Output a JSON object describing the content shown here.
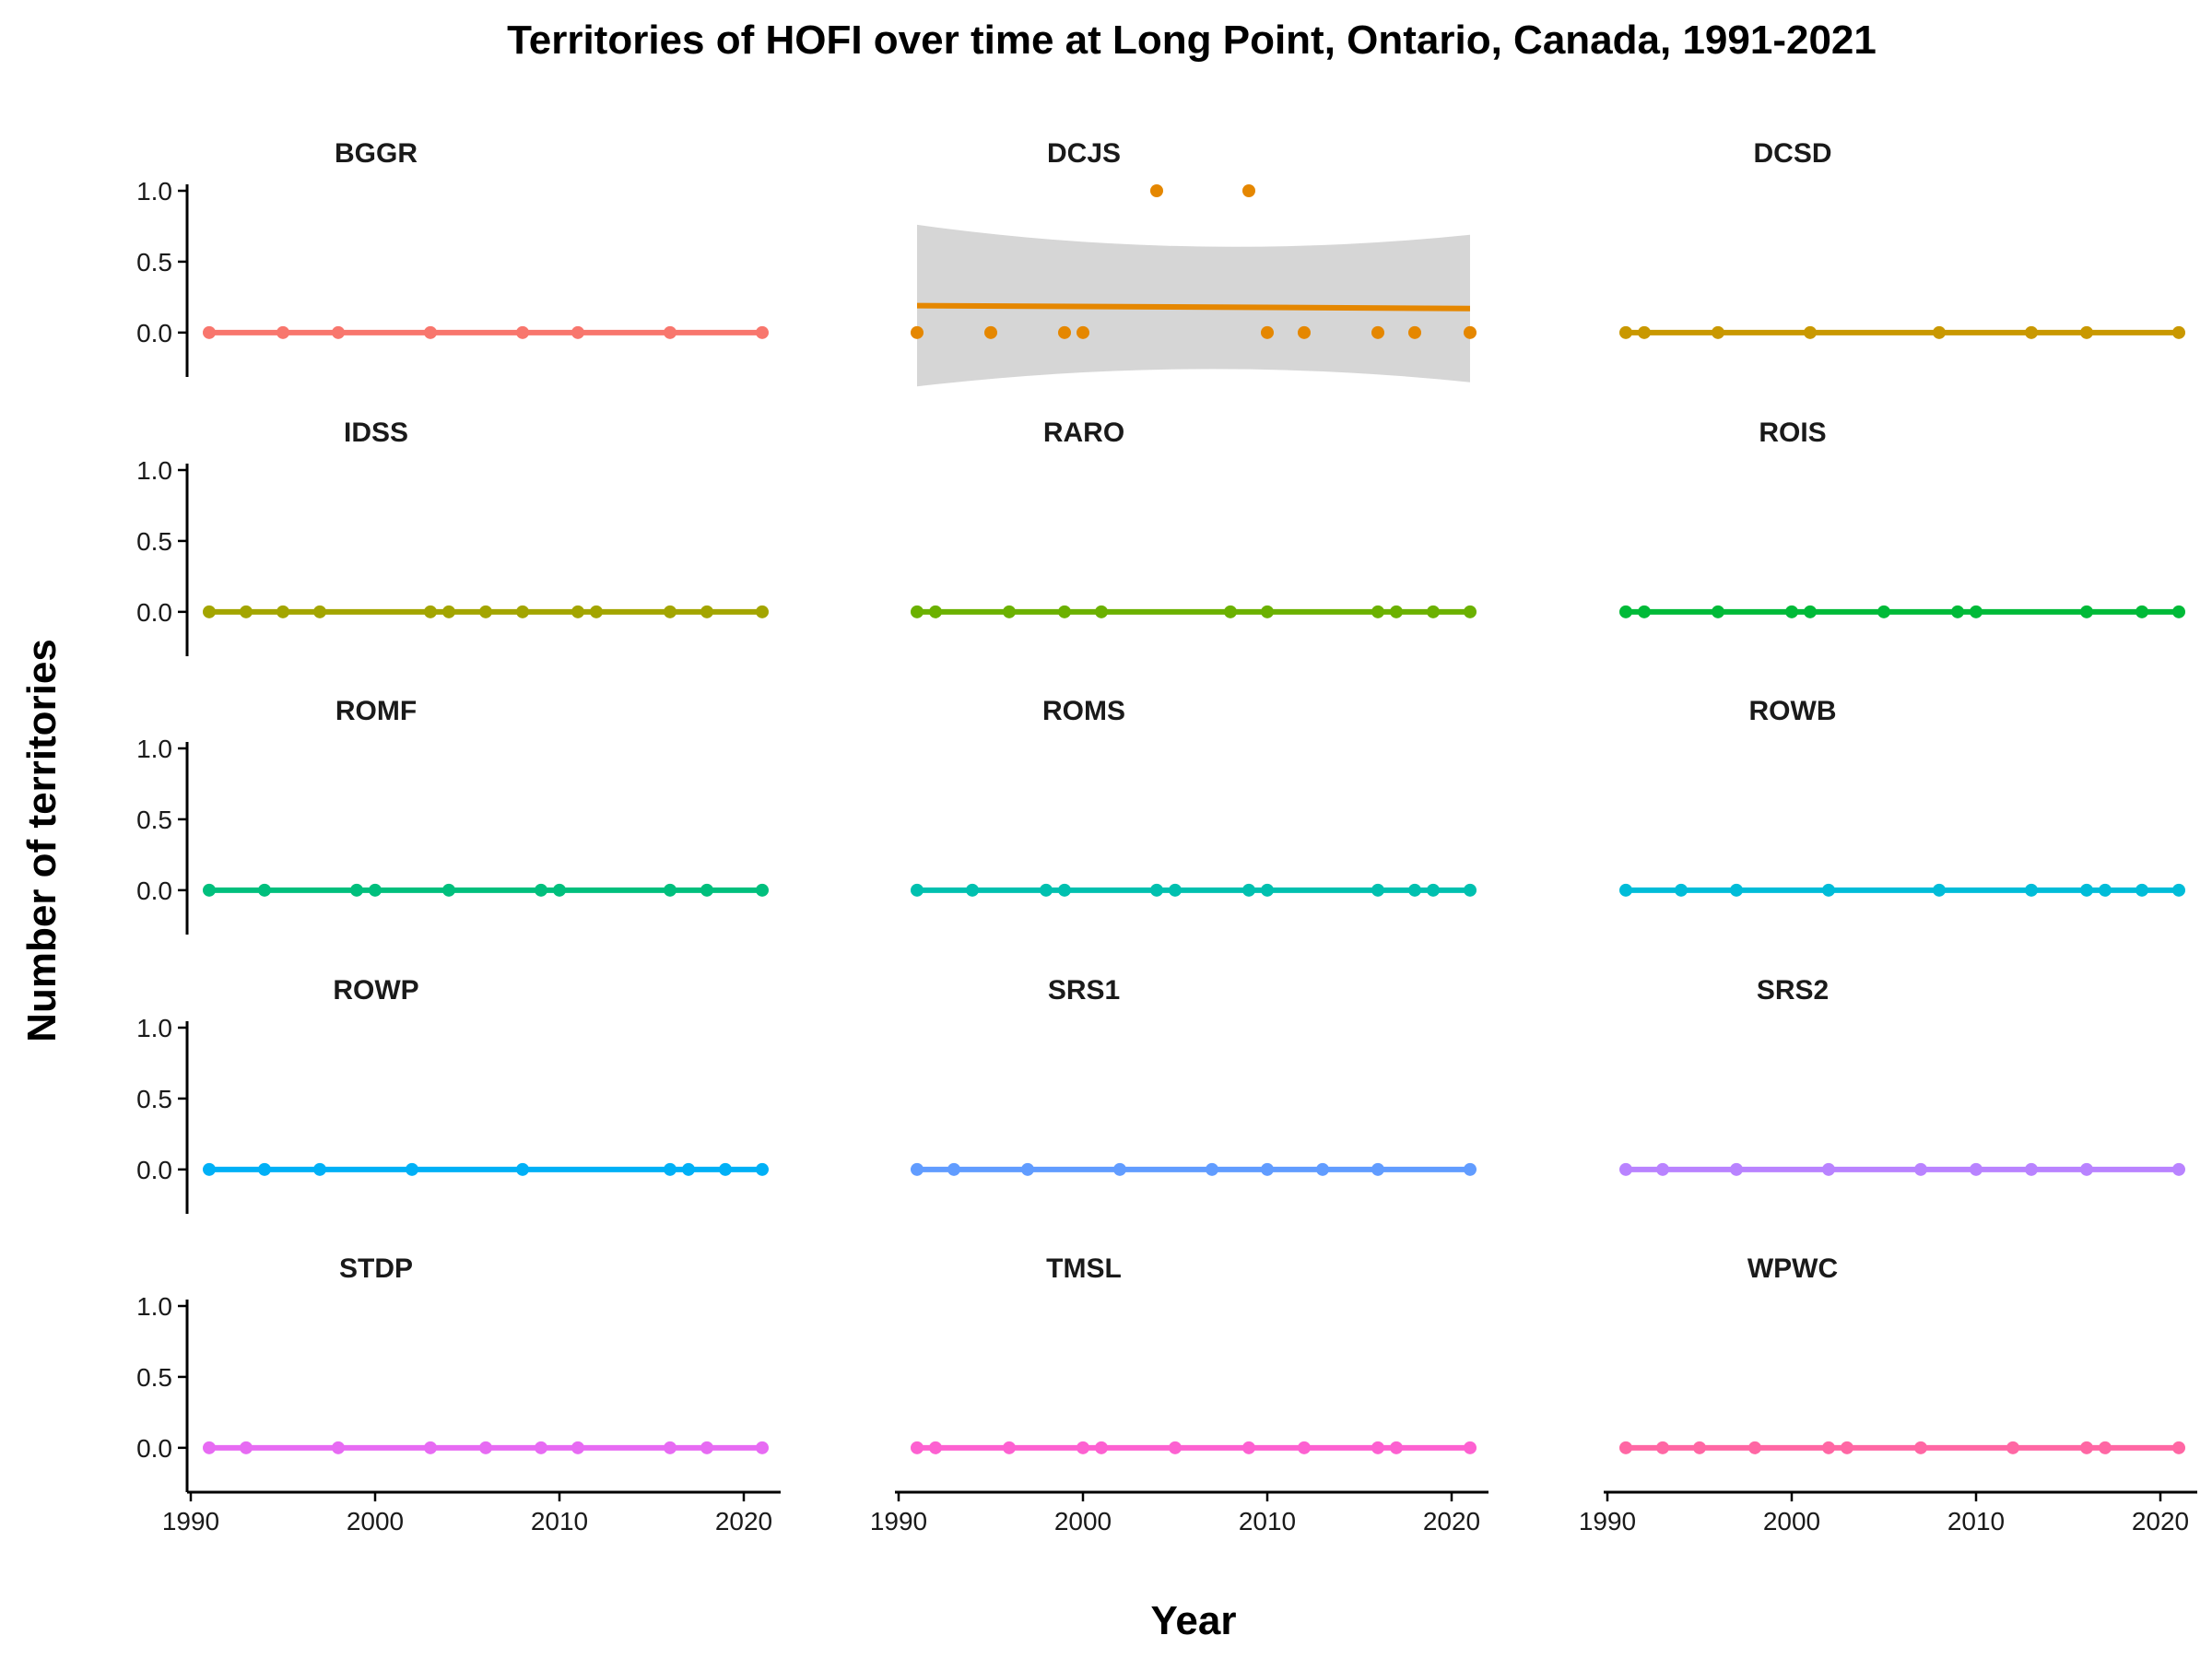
{
  "chart_data": {
    "type": "scatter",
    "title": "Territories of HOFI over time at Long Point, Ontario, Canada, 1991-2021",
    "xlabel": "Year",
    "ylabel": "Number of territories",
    "xlim": [
      1990,
      2022
    ],
    "ylim": [
      -0.3,
      1.0
    ],
    "x_ticks": [
      1990,
      2000,
      2010,
      2020
    ],
    "y_ticks": [
      0.0,
      0.5,
      1.0
    ],
    "y_tick_labels": [
      "0.0",
      "0.5",
      "1.0"
    ],
    "grid": false,
    "legend": "none",
    "layout": "facet grid, 5 rows x 3 columns, shared axes",
    "panels": [
      {
        "name": "BGGR",
        "color": "#F8766D",
        "x": [
          1991,
          1995,
          1998,
          2003,
          2008,
          2011,
          2016,
          2021
        ],
        "y": [
          0,
          0,
          0,
          0,
          0,
          0,
          0,
          0
        ],
        "trend": [
          0,
          0
        ],
        "ribbon": false
      },
      {
        "name": "DCJS",
        "color": "#E58700",
        "x": [
          1991,
          1995,
          1999,
          2000,
          2004,
          2009,
          2010,
          2012,
          2016,
          2018,
          2021
        ],
        "y": [
          0,
          0,
          0,
          0,
          1,
          1,
          0,
          0,
          0,
          0,
          0
        ],
        "trend": [
          0.19,
          0.17
        ],
        "ribbon": true,
        "ribbon_low": [
          -0.38,
          -0.35
        ],
        "ribbon_high": [
          0.76,
          0.69
        ]
      },
      {
        "name": "DCSD",
        "color": "#C99800",
        "x": [
          1991,
          1992,
          1996,
          2001,
          2008,
          2013,
          2016,
          2021
        ],
        "y": [
          0,
          0,
          0,
          0,
          0,
          0,
          0,
          0
        ],
        "trend": [
          0,
          0
        ],
        "ribbon": false
      },
      {
        "name": "IDSS",
        "color": "#A3A500",
        "x": [
          1991,
          1993,
          1995,
          1997,
          2003,
          2004,
          2006,
          2008,
          2011,
          2012,
          2016,
          2018,
          2021
        ],
        "y": [
          0,
          0,
          0,
          0,
          0,
          0,
          0,
          0,
          0,
          0,
          0,
          0,
          0
        ],
        "trend": [
          0,
          0
        ],
        "ribbon": false
      },
      {
        "name": "RARO",
        "color": "#6BB100",
        "x": [
          1991,
          1992,
          1996,
          1999,
          2001,
          2008,
          2010,
          2016,
          2017,
          2019,
          2021
        ],
        "y": [
          0,
          0,
          0,
          0,
          0,
          0,
          0,
          0,
          0,
          0,
          0
        ],
        "trend": [
          0,
          0
        ],
        "ribbon": false
      },
      {
        "name": "ROIS",
        "color": "#00BA38",
        "x": [
          1991,
          1992,
          1996,
          2000,
          2001,
          2005,
          2009,
          2010,
          2016,
          2019,
          2021
        ],
        "y": [
          0,
          0,
          0,
          0,
          0,
          0,
          0,
          0,
          0,
          0,
          0
        ],
        "trend": [
          0,
          0
        ],
        "ribbon": false
      },
      {
        "name": "ROMF",
        "color": "#00BF7D",
        "x": [
          1991,
          1994,
          1999,
          2000,
          2004,
          2009,
          2010,
          2016,
          2018,
          2021
        ],
        "y": [
          0,
          0,
          0,
          0,
          0,
          0,
          0,
          0,
          0,
          0
        ],
        "trend": [
          0,
          0
        ],
        "ribbon": false
      },
      {
        "name": "ROMS",
        "color": "#00C0AF",
        "x": [
          1991,
          1994,
          1998,
          1999,
          2004,
          2005,
          2009,
          2010,
          2016,
          2018,
          2019,
          2021
        ],
        "y": [
          0,
          0,
          0,
          0,
          0,
          0,
          0,
          0,
          0,
          0,
          0,
          0
        ],
        "trend": [
          0,
          0
        ],
        "ribbon": false
      },
      {
        "name": "ROWB",
        "color": "#00BCD8",
        "x": [
          1991,
          1994,
          1997,
          2002,
          2008,
          2013,
          2016,
          2017,
          2019,
          2021
        ],
        "y": [
          0,
          0,
          0,
          0,
          0,
          0,
          0,
          0,
          0,
          0
        ],
        "trend": [
          0,
          0
        ],
        "ribbon": false
      },
      {
        "name": "ROWP",
        "color": "#00B0F6",
        "x": [
          1991,
          1994,
          1997,
          2002,
          2008,
          2016,
          2017,
          2019,
          2021
        ],
        "y": [
          0,
          0,
          0,
          0,
          0,
          0,
          0,
          0,
          0
        ],
        "trend": [
          0,
          0
        ],
        "ribbon": false
      },
      {
        "name": "SRS1",
        "color": "#619CFF",
        "x": [
          1991,
          1993,
          1997,
          2002,
          2007,
          2010,
          2013,
          2016,
          2021
        ],
        "y": [
          0,
          0,
          0,
          0,
          0,
          0,
          0,
          0,
          0
        ],
        "trend": [
          0,
          0
        ],
        "ribbon": false
      },
      {
        "name": "SRS2",
        "color": "#B983FF",
        "x": [
          1991,
          1993,
          1997,
          2002,
          2007,
          2010,
          2013,
          2016,
          2021
        ],
        "y": [
          0,
          0,
          0,
          0,
          0,
          0,
          0,
          0,
          0
        ],
        "trend": [
          0,
          0
        ],
        "ribbon": false
      },
      {
        "name": "STDP",
        "color": "#E76BF3",
        "x": [
          1991,
          1993,
          1998,
          2003,
          2006,
          2009,
          2011,
          2016,
          2018,
          2021
        ],
        "y": [
          0,
          0,
          0,
          0,
          0,
          0,
          0,
          0,
          0,
          0
        ],
        "trend": [
          0,
          0
        ],
        "ribbon": false
      },
      {
        "name": "TMSL",
        "color": "#FD61D1",
        "x": [
          1991,
          1992,
          1996,
          2000,
          2001,
          2005,
          2009,
          2012,
          2016,
          2017,
          2021
        ],
        "y": [
          0,
          0,
          0,
          0,
          0,
          0,
          0,
          0,
          0,
          0,
          0
        ],
        "trend": [
          0,
          0
        ],
        "ribbon": false
      },
      {
        "name": "WPWC",
        "color": "#FF67A4",
        "x": [
          1991,
          1993,
          1995,
          1998,
          2002,
          2003,
          2007,
          2012,
          2016,
          2017,
          2021
        ],
        "y": [
          0,
          0,
          0,
          0,
          0,
          0,
          0,
          0,
          0,
          0,
          0
        ],
        "trend": [
          0,
          0
        ],
        "ribbon": false
      }
    ]
  }
}
